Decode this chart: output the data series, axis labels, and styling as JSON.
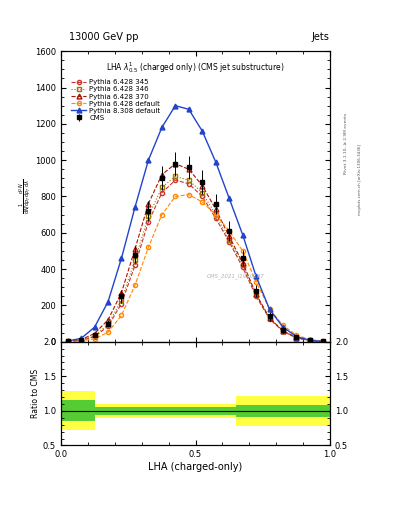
{
  "title_top": "13000 GeV pp",
  "title_right": "Jets",
  "plot_title": "LHA $\\lambda^{1}_{0.5}$ (charged only) (CMS jet substructure)",
  "xlabel": "LHA (charged-only)",
  "ylabel_ratio": "Ratio to CMS",
  "right_label": "Rivet 3.1.10, ≥ 2.9M events",
  "right_label2": "mcplots.cern.ch [arXiv:1306.3436]",
  "watermark": "CMS_2021_I1920187",
  "xlim": [
    0,
    1
  ],
  "ylim_main": [
    0,
    1600
  ],
  "ylim_ratio": [
    0.5,
    2.0
  ],
  "lha_bins": [
    0.0,
    0.05,
    0.1,
    0.15,
    0.2,
    0.25,
    0.3,
    0.35,
    0.4,
    0.45,
    0.5,
    0.55,
    0.6,
    0.65,
    0.7,
    0.75,
    0.8,
    0.85,
    0.9,
    0.95,
    1.0
  ],
  "cms_values": [
    2,
    8,
    35,
    100,
    250,
    480,
    720,
    900,
    980,
    960,
    880,
    760,
    610,
    460,
    280,
    140,
    65,
    24,
    8,
    2
  ],
  "cms_errors": [
    1,
    3,
    10,
    20,
    35,
    45,
    55,
    65,
    65,
    65,
    65,
    55,
    55,
    45,
    35,
    25,
    18,
    8,
    4,
    1
  ],
  "p6_345_values": [
    2,
    7,
    28,
    85,
    210,
    420,
    660,
    820,
    890,
    870,
    800,
    680,
    550,
    410,
    250,
    125,
    57,
    20,
    6,
    1
  ],
  "p6_346_values": [
    2,
    8,
    32,
    95,
    230,
    450,
    690,
    850,
    910,
    890,
    820,
    700,
    560,
    425,
    258,
    128,
    58,
    21,
    7,
    1
  ],
  "p6_370_values": [
    3,
    11,
    45,
    120,
    270,
    510,
    760,
    920,
    980,
    950,
    860,
    730,
    580,
    435,
    262,
    130,
    60,
    22,
    7,
    1
  ],
  "p6_default_values": [
    1,
    4,
    16,
    52,
    145,
    310,
    520,
    700,
    800,
    810,
    770,
    700,
    610,
    500,
    330,
    180,
    90,
    36,
    12,
    2
  ],
  "p8_default_values": [
    4,
    18,
    80,
    220,
    460,
    740,
    1000,
    1180,
    1300,
    1280,
    1160,
    990,
    790,
    590,
    360,
    178,
    80,
    28,
    8,
    1
  ],
  "colors": {
    "cms": "#000000",
    "p6_345": "#cc3333",
    "p6_346": "#997700",
    "p6_370": "#aa1100",
    "p6_default": "#ff8800",
    "p8_default": "#2244cc"
  },
  "yellow_regions": [
    {
      "x": [
        0.0,
        0.125
      ],
      "lo": 0.72,
      "hi": 1.28
    },
    {
      "x": [
        0.125,
        0.65
      ],
      "lo": 0.9,
      "hi": 1.1
    },
    {
      "x": [
        0.65,
        1.0
      ],
      "lo": 0.78,
      "hi": 1.22
    }
  ],
  "green_regions": [
    {
      "x": [
        0.0,
        0.125
      ],
      "lo": 0.85,
      "hi": 1.15
    },
    {
      "x": [
        0.125,
        0.65
      ],
      "lo": 0.94,
      "hi": 1.06
    },
    {
      "x": [
        0.65,
        1.0
      ],
      "lo": 0.91,
      "hi": 1.09
    }
  ]
}
